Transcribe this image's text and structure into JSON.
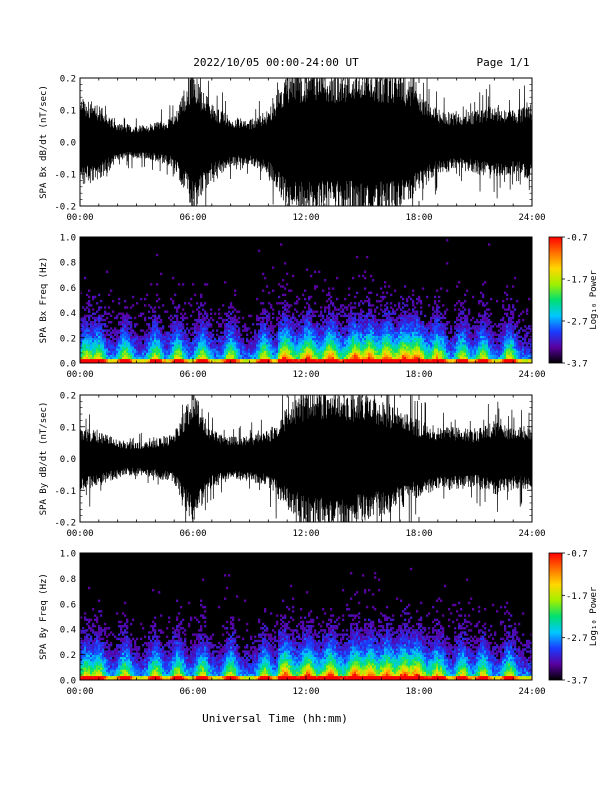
{
  "header": {
    "title": "2022/10/05  00:00-24:00 UT",
    "page": "Page 1/1"
  },
  "footer": {
    "xlabel": "Universal Time (hh:mm)"
  },
  "colorbar": {
    "label": "Log₁₀ Power",
    "ticks": [
      "-0.7",
      "-1.7",
      "-2.7",
      "-3.7"
    ],
    "range": [
      -3.7,
      -0.7
    ],
    "colors": [
      "#000000",
      "#5a00a0",
      "#1a3cff",
      "#00c8ff",
      "#00e070",
      "#a0f000",
      "#ffd800",
      "#ff7000",
      "#ff0000"
    ]
  },
  "chart_data": [
    {
      "type": "line",
      "ylabel": "SPA Bx dB/dt (nT/sec)",
      "xlim": [
        0,
        24
      ],
      "ylim": [
        -0.2,
        0.2
      ],
      "x_tick_labels": [
        "00:00",
        "06:00",
        "12:00",
        "18:00",
        "24:00"
      ],
      "y_tick_labels": [
        "0.2",
        "0.1",
        "0.0",
        "-0.1",
        "-0.2"
      ],
      "y_ticks": [
        0.2,
        0.1,
        0.0,
        -0.1,
        -0.2
      ],
      "envelope_hours": [
        0,
        1,
        2,
        3,
        4,
        5,
        6,
        7,
        8,
        9,
        10,
        11,
        12,
        13,
        14,
        15,
        16,
        17,
        18,
        19,
        20,
        21,
        22,
        23,
        24
      ],
      "envelope_amplitude": [
        0.14,
        0.12,
        0.06,
        0.05,
        0.06,
        0.08,
        0.22,
        0.12,
        0.08,
        0.07,
        0.1,
        0.22,
        0.22,
        0.22,
        0.22,
        0.22,
        0.22,
        0.22,
        0.16,
        0.1,
        0.09,
        0.1,
        0.12,
        0.1,
        0.12
      ],
      "color": "#000000"
    },
    {
      "type": "heatmap",
      "ylabel": "SPA Bx Freq (Hz)",
      "xlim": [
        0,
        24
      ],
      "ylim": [
        0.0,
        1.0
      ],
      "x_tick_labels": [
        "00:00",
        "06:00",
        "12:00",
        "18:00",
        "24:00"
      ],
      "y_tick_labels": [
        "1.0",
        "0.8",
        "0.6",
        "0.4",
        "0.2",
        "0.0"
      ],
      "y_ticks": [
        1.0,
        0.8,
        0.6,
        0.4,
        0.2,
        0.0
      ],
      "zlabel": "Log₁₀ Power",
      "zlim": [
        -3.7,
        -0.7
      ]
    },
    {
      "type": "line",
      "ylabel": "SPA By dB/dt (nT/sec)",
      "xlim": [
        0,
        24
      ],
      "ylim": [
        -0.2,
        0.2
      ],
      "x_tick_labels": [
        "00:00",
        "06:00",
        "12:00",
        "18:00",
        "24:00"
      ],
      "y_tick_labels": [
        "0.2",
        "0.1",
        "0.0",
        "-0.1",
        "-0.2"
      ],
      "y_ticks": [
        0.2,
        0.1,
        0.0,
        -0.1,
        -0.2
      ],
      "envelope_hours": [
        0,
        1,
        2,
        3,
        4,
        5,
        6,
        7,
        8,
        9,
        10,
        11,
        12,
        13,
        14,
        15,
        16,
        17,
        18,
        19,
        20,
        21,
        22,
        23,
        24
      ],
      "envelope_amplitude": [
        0.1,
        0.09,
        0.06,
        0.05,
        0.06,
        0.08,
        0.22,
        0.09,
        0.07,
        0.07,
        0.09,
        0.16,
        0.22,
        0.22,
        0.22,
        0.2,
        0.18,
        0.16,
        0.12,
        0.1,
        0.1,
        0.09,
        0.12,
        0.1,
        0.1
      ],
      "color": "#000000"
    },
    {
      "type": "heatmap",
      "ylabel": "SPA By Freq (Hz)",
      "xlim": [
        0,
        24
      ],
      "ylim": [
        0.0,
        1.0
      ],
      "x_tick_labels": [
        "00:00",
        "06:00",
        "12:00",
        "18:00",
        "24:00"
      ],
      "y_tick_labels": [
        "1.0",
        "0.8",
        "0.6",
        "0.4",
        "0.2",
        "0.0"
      ],
      "y_ticks": [
        1.0,
        0.8,
        0.6,
        0.4,
        0.2,
        0.0
      ],
      "zlabel": "Log₁₀ Power",
      "zlim": [
        -3.7,
        -0.7
      ]
    }
  ]
}
